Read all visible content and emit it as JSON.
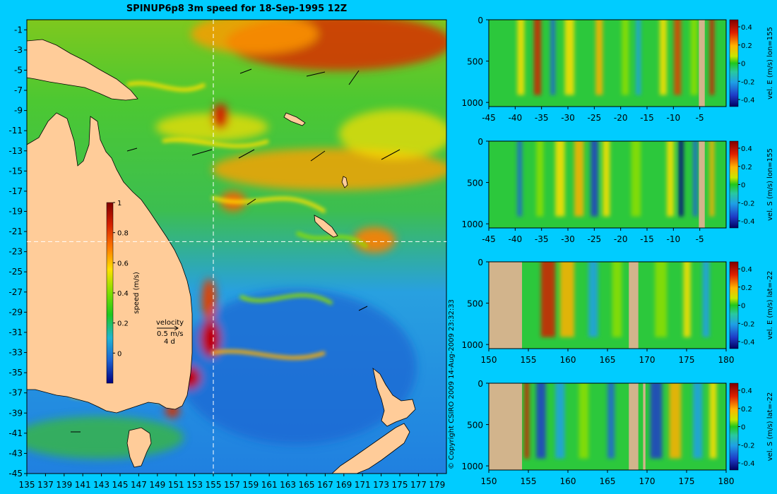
{
  "title": "SPINUP6p8 3m speed for 18-Sep-1995 12Z",
  "copyright": "© Copyright CSIRO 2009   14-Aug-2009 23:32:33",
  "colors": {
    "background": "#00ccff",
    "land": "#ffcc99",
    "section_land": "#d2b48c",
    "crosshair": "#ffffff"
  },
  "chart_data": [
    {
      "type": "heatmap",
      "panel": "map",
      "x_ticks": [
        "135",
        "137",
        "139",
        "141",
        "143",
        "145",
        "147",
        "149",
        "151",
        "153",
        "155",
        "157",
        "159",
        "161",
        "163",
        "165",
        "167",
        "169",
        "171",
        "173",
        "175",
        "177",
        "179"
      ],
      "y_ticks": [
        "-1",
        "-3",
        "-5",
        "-7",
        "-9",
        "-11",
        "-13",
        "-15",
        "-17",
        "-19",
        "-21",
        "-23",
        "-25",
        "-27",
        "-29",
        "-31",
        "-33",
        "-35",
        "-37",
        "-39",
        "-41",
        "-43",
        "-45"
      ],
      "xlim": [
        135,
        180
      ],
      "ylim": [
        -45,
        0
      ],
      "crosshair": {
        "lon": 155,
        "lat": -22
      },
      "colorbar": {
        "label": "speed (m/s)",
        "ticks": [
          "0",
          "0.2",
          "0.4",
          "0.6",
          "0.8",
          "1"
        ],
        "range": [
          -0.2,
          1
        ]
      },
      "velocity_legend": {
        "title": "velocity",
        "speed": "0.5 m/s",
        "duration": "4 d"
      }
    },
    {
      "type": "heatmap",
      "panel": "section",
      "x_ticks": [
        "-45",
        "-40",
        "-35",
        "-30",
        "-25",
        "-20",
        "-15",
        "-10",
        "-5"
      ],
      "xlim": [
        -45,
        0
      ],
      "y_ticks": [
        "0",
        "500",
        "1000"
      ],
      "ylim": [
        1050,
        0
      ],
      "colorbar": {
        "label": "vel. E (m/s) lon=155",
        "ticks": [
          "0.4",
          "0.2",
          "0",
          "-0.2",
          "-0.4"
        ]
      }
    },
    {
      "type": "heatmap",
      "panel": "section",
      "x_ticks": [
        "-45",
        "-40",
        "-35",
        "-30",
        "-25",
        "-20",
        "-15",
        "-10",
        "-5"
      ],
      "xlim": [
        -45,
        0
      ],
      "y_ticks": [
        "0",
        "500",
        "1000"
      ],
      "ylim": [
        1050,
        0
      ],
      "colorbar": {
        "label": "vel. S (m/s) lon=155",
        "ticks": [
          "0.4",
          "0.2",
          "0",
          "-0.2",
          "-0.4"
        ]
      }
    },
    {
      "type": "heatmap",
      "panel": "section",
      "x_ticks": [
        "150",
        "155",
        "160",
        "165",
        "170",
        "175",
        "180"
      ],
      "xlim": [
        150,
        180
      ],
      "y_ticks": [
        "0",
        "500",
        "1000"
      ],
      "ylim": [
        1050,
        0
      ],
      "colorbar": {
        "label": "vel. E (m/s) lat=-22",
        "ticks": [
          "0.4",
          "0.2",
          "0",
          "-0.2",
          "-0.4"
        ]
      }
    },
    {
      "type": "heatmap",
      "panel": "section",
      "x_ticks": [
        "150",
        "155",
        "160",
        "165",
        "170",
        "175",
        "180"
      ],
      "xlim": [
        150,
        180
      ],
      "y_ticks": [
        "0",
        "500",
        "1000"
      ],
      "ylim": [
        1050,
        0
      ],
      "colorbar": {
        "label": "vel. S (m/s) lat=-22",
        "ticks": [
          "0.4",
          "0.2",
          "0",
          "-0.2",
          "-0.4"
        ]
      }
    }
  ]
}
